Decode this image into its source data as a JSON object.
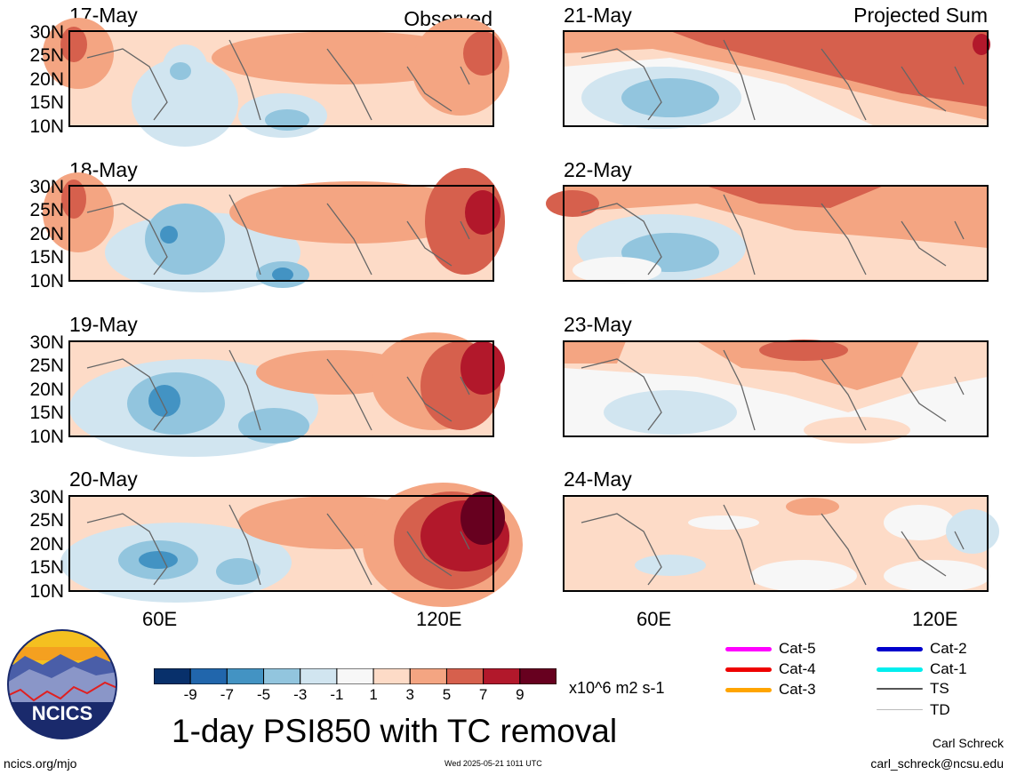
{
  "header": {
    "left_tag": "Observed",
    "right_tag": "Projected Sum"
  },
  "panels_left": [
    {
      "date": "17-May"
    },
    {
      "date": "18-May"
    },
    {
      "date": "19-May"
    },
    {
      "date": "20-May"
    }
  ],
  "panels_right": [
    {
      "date": "21-May"
    },
    {
      "date": "22-May"
    },
    {
      "date": "23-May"
    },
    {
      "date": "24-May"
    }
  ],
  "lat_labels": [
    "30N",
    "25N",
    "20N",
    "15N",
    "10N"
  ],
  "lon_labels": [
    "60E",
    "120E"
  ],
  "colorbar": {
    "colors": [
      "#08306b",
      "#2166ac",
      "#4393c3",
      "#92c5de",
      "#d1e5f0",
      "#f7f7f7",
      "#fddbc7",
      "#f4a582",
      "#d6604d",
      "#b2182b",
      "#67001f"
    ],
    "labels": [
      "-9",
      "-7",
      "-5",
      "-3",
      "-1",
      "1",
      "3",
      "5",
      "7",
      "9"
    ],
    "units": "x10^6 m2 s-1"
  },
  "tc_legend": [
    {
      "label": "Cat-5",
      "color": "#ff00ff"
    },
    {
      "label": "Cat-4",
      "color": "#ee0000"
    },
    {
      "label": "Cat-3",
      "color": "#ffa500"
    },
    {
      "label": "Cat-2",
      "color": "#0000cc"
    },
    {
      "label": "Cat-1",
      "color": "#00eeee"
    },
    {
      "label": "TS",
      "color": "#555555"
    },
    {
      "label": "TD",
      "color": "#bbbbbb"
    }
  ],
  "title": "1-day PSI850 with TC removal",
  "logo_text": "NCICS",
  "footer": {
    "url": "ncics.org/mjo",
    "timestamp": "Wed 2025-05-21 1011 UTC",
    "author": "Carl Schreck",
    "email": "carl_schreck@ncsu.edu"
  }
}
